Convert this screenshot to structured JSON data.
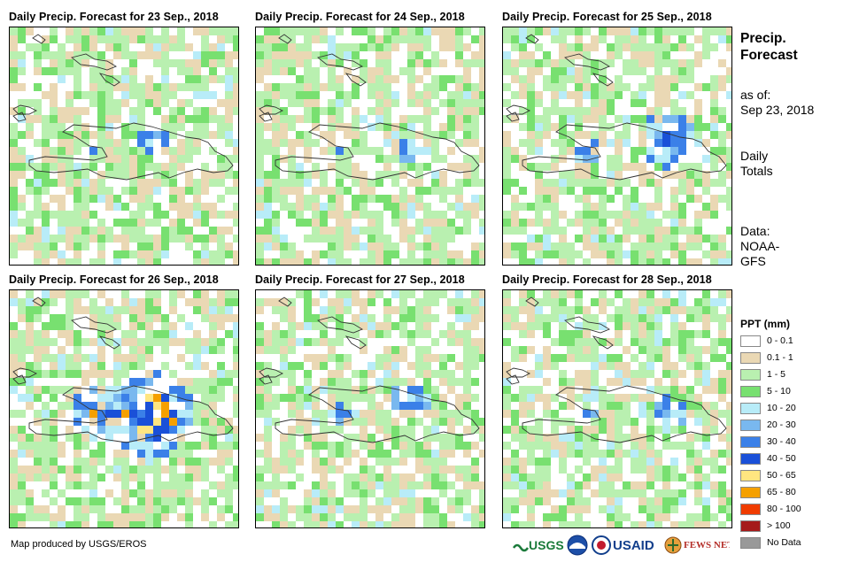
{
  "panels": [
    {
      "title": "Daily Precip. Forecast for 23 Sep., 2018",
      "seed": 11,
      "wet": 0.9
    },
    {
      "title": "Daily Precip. Forecast for 24 Sep., 2018",
      "seed": 23,
      "wet": 0.85
    },
    {
      "title": "Daily Precip. Forecast for 25 Sep., 2018",
      "seed": 37,
      "wet": 1.4
    },
    {
      "title": "Daily Precip. Forecast for 26 Sep., 2018",
      "seed": 53,
      "wet": 1.9
    },
    {
      "title": "Daily Precip. Forecast for 27 Sep., 2018",
      "seed": 71,
      "wet": 1.1
    },
    {
      "title": "Daily Precip. Forecast for 28 Sep., 2018",
      "seed": 89,
      "wet": 1.0
    }
  ],
  "side": {
    "title_line1": "Precip.",
    "title_line2": "Forecast",
    "asof_label": "as of:",
    "asof_date": "Sep 23, 2018",
    "totals_line1": "Daily",
    "totals_line2": "Totals",
    "data_line1": "Data:",
    "data_line2": "NOAA-",
    "data_line3": "GFS"
  },
  "legend": {
    "title": "PPT (mm)",
    "items": [
      {
        "label": "0 - 0.1",
        "color": "#ffffff"
      },
      {
        "label": "0.1 - 1",
        "color": "#ead8b4"
      },
      {
        "label": "1 - 5",
        "color": "#b9f0b0"
      },
      {
        "label": "5 - 10",
        "color": "#78e070"
      },
      {
        "label": "10 - 20",
        "color": "#b8ecf8"
      },
      {
        "label": "20 - 30",
        "color": "#79b8ef"
      },
      {
        "label": "30 - 40",
        "color": "#3b80e8"
      },
      {
        "label": "40 - 50",
        "color": "#1a50d8"
      },
      {
        "label": "50 - 65",
        "color": "#ffe680"
      },
      {
        "label": "65 - 80",
        "color": "#f5a000"
      },
      {
        "label": "80 - 100",
        "color": "#f03c00"
      },
      {
        "label": "> 100",
        "color": "#a51a1a"
      },
      {
        "label": "No Data",
        "color": "#999999"
      }
    ]
  },
  "credit": "Map produced by USGS/EROS",
  "logos": {
    "usgs": "USGS",
    "usaid": "USAID",
    "fewsnet": "FEWS NET"
  }
}
